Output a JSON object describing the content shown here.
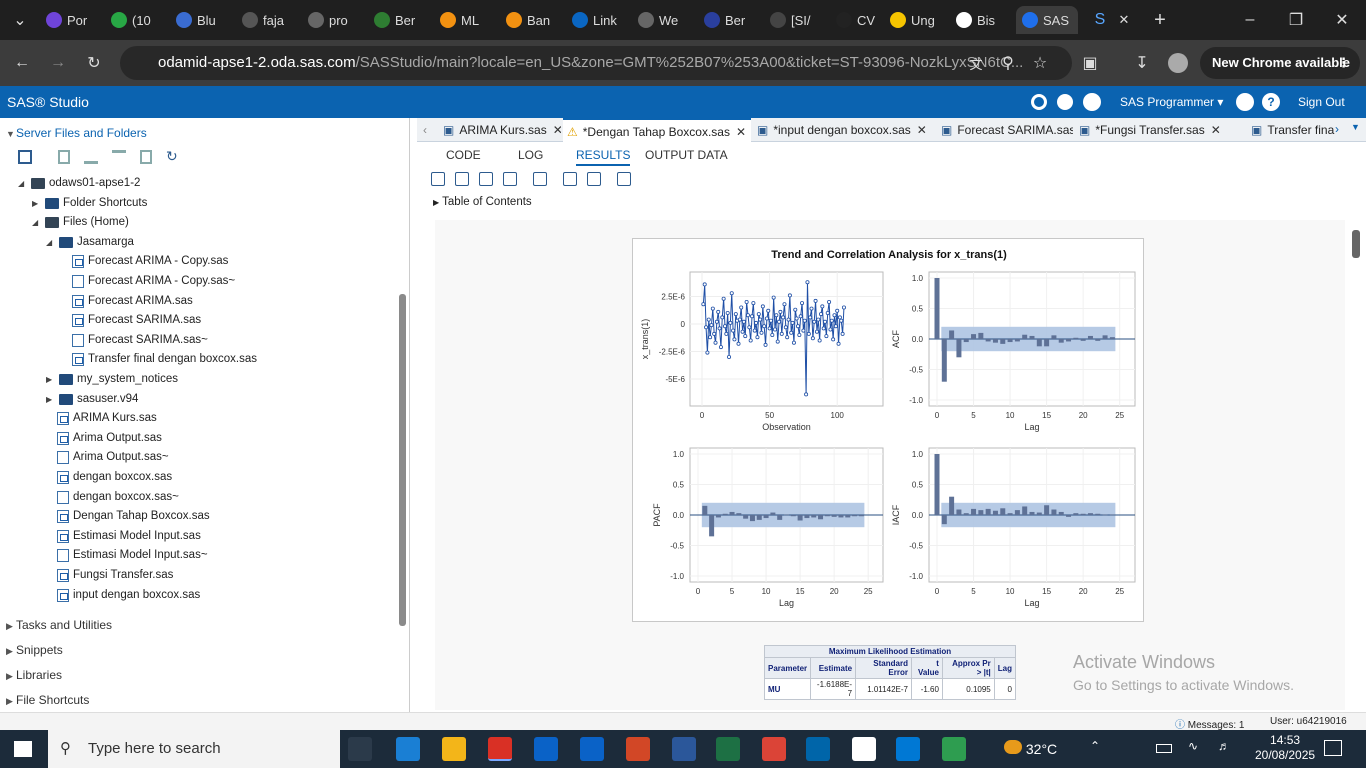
{
  "browser": {
    "tabs": [
      "Por",
      "(10",
      "Blu",
      "faja",
      "pro",
      "Ber",
      "ML",
      "Ban",
      "Link",
      "We",
      "Ber",
      "[SI/",
      "CV",
      "Ung",
      "Bis",
      "SAS"
    ],
    "url_host": "odamid-apse1-2.oda.sas.com",
    "url_path": "/SASStudio/main?locale=en_US&zone=GMT%252B07%253A00&ticket=ST-93096-NozkLyxSN6tC...",
    "new_chrome": "New Chrome available"
  },
  "sas": {
    "brand": "SAS® Studio",
    "programmer": "SAS Programmer",
    "signout": "Sign Out"
  },
  "left": {
    "server_files": "Server Files and Folders",
    "root": "odaws01-apse1-2",
    "folder_shortcuts": "Folder Shortcuts",
    "files_home": "Files (Home)",
    "jasamarga": "Jasamarga",
    "jasamarga_files": [
      "Forecast ARIMA - Copy.sas",
      "Forecast ARIMA - Copy.sas~",
      "Forecast ARIMA.sas",
      "Forecast SARIMA.sas",
      "Forecast SARIMA.sas~",
      "Transfer final dengan boxcox.sas"
    ],
    "my_system_notices": "my_system_notices",
    "sasuser": "sasuser.v94",
    "home_files": [
      "ARIMA Kurs.sas",
      "Arima Output.sas",
      "Arima Output.sas~",
      "dengan boxcox.sas",
      "dengan boxcox.sas~",
      "Dengan Tahap Boxcox.sas",
      "Estimasi Model Input.sas",
      "Estimasi Model Input.sas~",
      "Fungsi Transfer.sas",
      "input dengan boxcox.sas"
    ],
    "tasks": "Tasks and Utilities",
    "snippets": "Snippets",
    "libraries": "Libraries",
    "file_shortcuts": "File Shortcuts"
  },
  "editor": {
    "tabs": [
      "ARIMA Kurs.sas",
      "*Dengan Tahap Boxcox.sas",
      "*input dengan boxcox.sas",
      "Forecast SARIMA.sas",
      "*Fungsi Transfer.sas",
      "Transfer fina"
    ],
    "subtabs": [
      "CODE",
      "LOG",
      "RESULTS",
      "OUTPUT DATA"
    ],
    "toc": "Table of Contents"
  },
  "chart_data": {
    "type": "line",
    "title": "Trend and Correlation Analysis for x_trans(1)",
    "series_plot": {
      "xlabel": "Observation",
      "ylabel": "x_trans(1)",
      "xticks": [
        "0",
        "50",
        "100"
      ],
      "yticks": [
        "2.5E-6",
        "0",
        "-2.5E-6",
        "-5E-6"
      ],
      "y": [
        1.8,
        3.6,
        -0.3,
        -2.6,
        0.4,
        -1.2,
        -0.1,
        1.4,
        -0.9,
        -1.7,
        0.2,
        1.1,
        -0.4,
        -2.1,
        0.6,
        2.3,
        -0.2,
        -0.9,
        1.0,
        -3.0,
        0.1,
        2.8,
        -0.6,
        -1.4,
        0.9,
        0.3,
        -1.8,
        0.4,
        1.5,
        -0.7,
        0.2,
        -1.1,
        2.0,
        0.8,
        -0.3,
        -1.5,
        0.7,
        1.9,
        -0.6,
        0.1,
        -1.2,
        0.9,
        0.4,
        -0.8,
        1.6,
        -0.2,
        -1.9,
        0.5,
        1.2,
        -0.4,
        0.3,
        -1.0,
        2.4,
        -0.5,
        0.8,
        -1.6,
        0.2,
        1.1,
        -0.9,
        0.6,
        1.8,
        -0.3,
        -1.2,
        0.4,
        2.6,
        -0.8,
        0.1,
        -1.7,
        1.3,
        0.5,
        -0.2,
        -1.0,
        0.7,
        1.9,
        -0.6,
        0.3,
        -6.4,
        3.8,
        -0.9,
        0.6,
        1.4,
        -1.3,
        0.2,
        2.1,
        -0.7,
        0.4,
        -1.5,
        0.9,
        1.6,
        -0.4,
        0.2,
        -1.1,
        1.0,
        2.0,
        -0.5,
        0.3,
        -1.4,
        0.8,
        -0.2,
        1.2,
        -1.8,
        0.6,
        0.3,
        -0.9,
        1.5
      ],
      "xmax": 125
    },
    "acf": {
      "xlabel": "Lag",
      "ylabel": "ACF",
      "values": [
        1.0,
        -0.7,
        0.14,
        -0.3,
        -0.05,
        0.08,
        0.1,
        -0.04,
        -0.06,
        -0.08,
        -0.05,
        -0.04,
        0.07,
        0.05,
        -0.12,
        -0.12,
        0.06,
        -0.06,
        -0.04,
        0.02,
        -0.03,
        0.05,
        -0.03,
        0.06,
        0.03
      ],
      "band": 0.2
    },
    "pacf": {
      "xlabel": "Lag",
      "ylabel": "PACF",
      "values": [
        0.15,
        -0.35,
        -0.04,
        0.02,
        0.05,
        0.03,
        -0.06,
        -0.1,
        -0.08,
        -0.05,
        0.04,
        -0.08,
        0.01,
        -0.02,
        -0.09,
        -0.05,
        -0.04,
        -0.07,
        -0.02,
        -0.03,
        -0.04,
        -0.04,
        -0.02,
        -0.02
      ],
      "band": 0.2
    },
    "iacf": {
      "xlabel": "Lag",
      "ylabel": "IACF",
      "values": [
        1.0,
        -0.15,
        0.3,
        0.09,
        0.03,
        0.1,
        0.08,
        0.1,
        0.07,
        0.11,
        0.03,
        0.08,
        0.14,
        0.05,
        0.04,
        0.16,
        0.09,
        0.05,
        -0.03,
        0.03,
        0.02,
        0.03,
        0.02,
        0.01,
        0.01
      ],
      "band": 0.2
    },
    "corr_yticks": [
      "1.0",
      "0.5",
      "0.0",
      "-0.5",
      "-1.0"
    ],
    "lag_ticks": [
      "0",
      "5",
      "10",
      "15",
      "20",
      "25"
    ]
  },
  "mle": {
    "caption": "Maximum Likelihood Estimation",
    "headers": [
      "Parameter",
      "Estimate",
      "Standard Error",
      "t Value",
      "Approx Pr > |t|",
      "Lag"
    ],
    "rows": [
      [
        "MU",
        "-1.6188E-7",
        "1.01142E-7",
        "-1.60",
        "0.1095",
        "0"
      ]
    ]
  },
  "status": {
    "messages": "Messages: 1",
    "user": "User: u64219016"
  },
  "watermark": {
    "title": "Activate Windows",
    "sub": "Go to Settings to activate Windows."
  },
  "taskbar": {
    "search": "Type here to search",
    "weather": "32°C",
    "time": "14:53",
    "date": "20/08/2025"
  }
}
